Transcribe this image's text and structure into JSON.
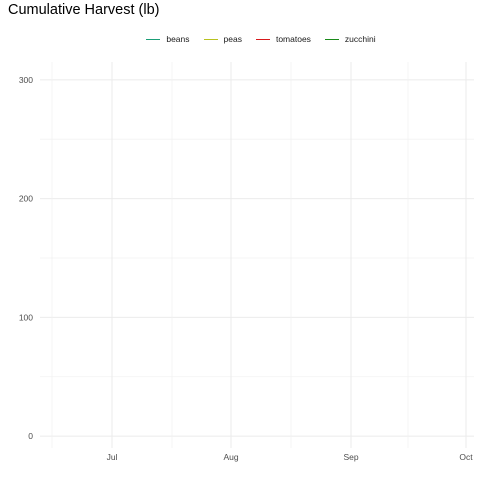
{
  "chart_data": {
    "type": "line",
    "title": "Cumulative Harvest (lb)",
    "xlabel": "",
    "ylabel": "",
    "x_ticks": [
      "Jul",
      "Aug",
      "Sep",
      "Oct"
    ],
    "y_ticks": [
      0,
      100,
      200,
      300
    ],
    "ylim": [
      -10,
      315
    ],
    "grid": true,
    "legend_position": "top",
    "series": [
      {
        "name": "beans",
        "color": "#1b9e77",
        "values": []
      },
      {
        "name": "peas",
        "color": "#b8c21f",
        "values": []
      },
      {
        "name": "tomatoes",
        "color": "#d7191c",
        "values": []
      },
      {
        "name": "zucchini",
        "color": "#1a8a1a",
        "values": []
      }
    ]
  }
}
